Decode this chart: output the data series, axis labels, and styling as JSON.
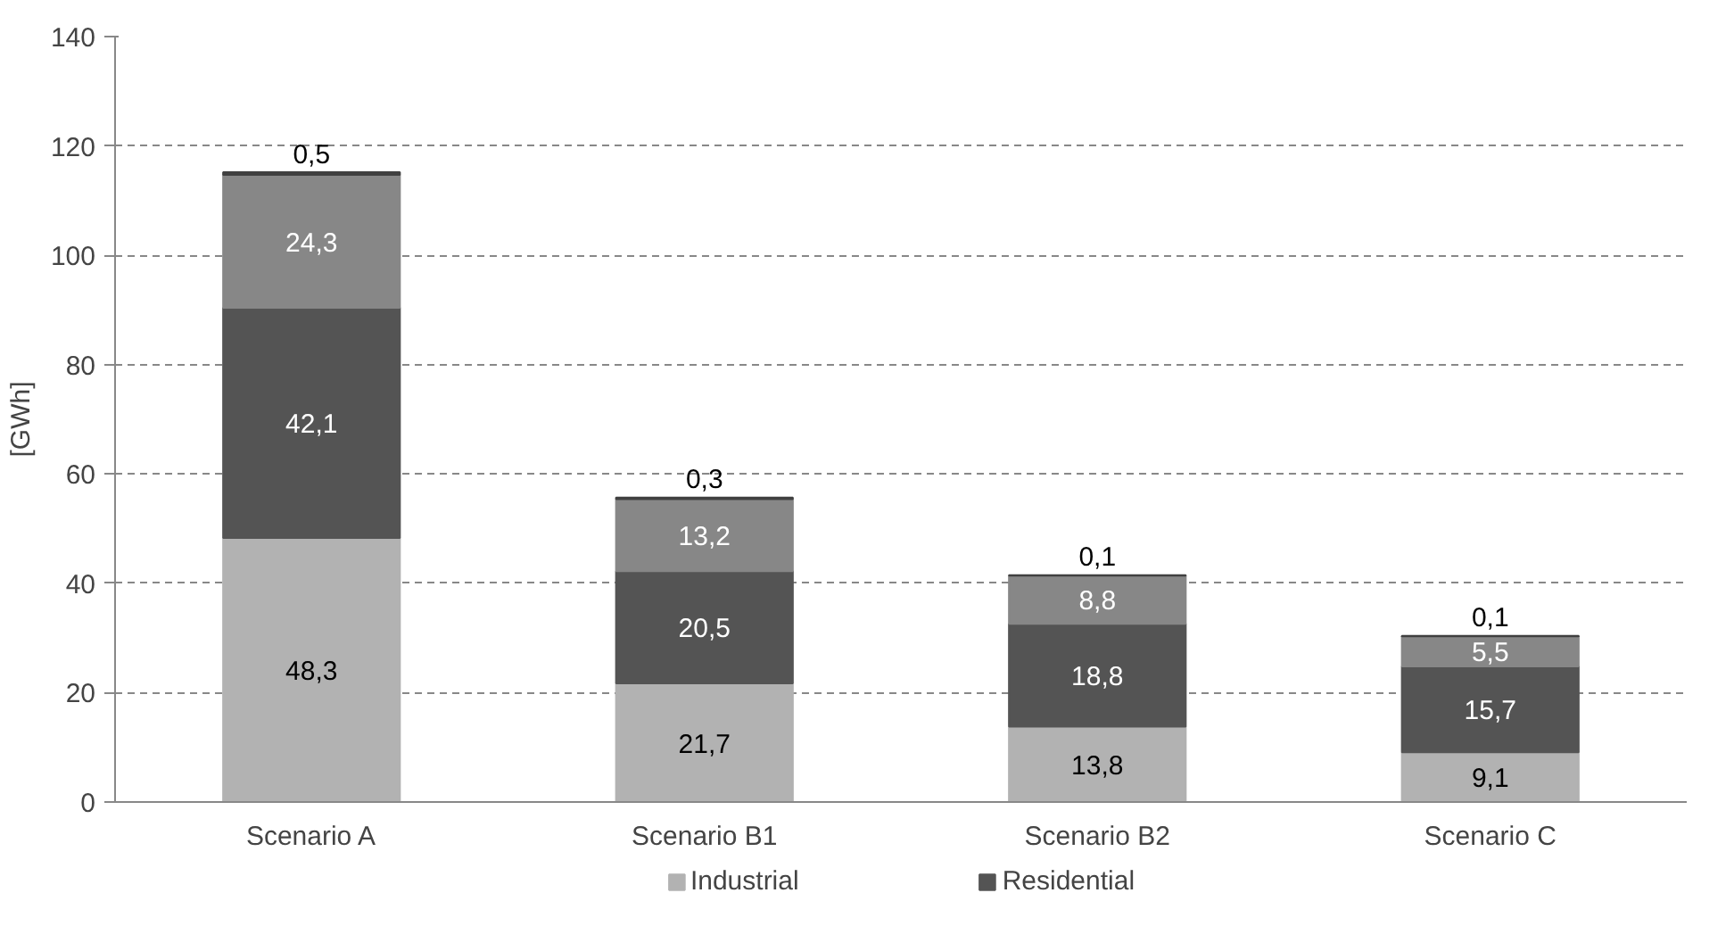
{
  "chart_data": {
    "type": "bar",
    "stacked": true,
    "ylabel": "[GWh]",
    "categories": [
      "Scenario A",
      "Scenario B1",
      "Scenario B2",
      "Scenario C"
    ],
    "series": [
      {
        "name": "Industrial",
        "color": "#b2b2b2",
        "values": [
          48.3,
          21.7,
          13.8,
          9.1
        ],
        "value_labels": [
          "48,3",
          "21,7",
          "13,8",
          "9,1"
        ]
      },
      {
        "name": "Residential",
        "color": "#545454",
        "values": [
          42.1,
          20.5,
          18.8,
          15.7
        ],
        "value_labels": [
          "42,1",
          "20,5",
          "18,8",
          "15,7"
        ]
      },
      {
        "color": "#878787",
        "values": [
          24.3,
          13.2,
          8.8,
          5.5
        ],
        "value_labels": [
          "24,3",
          "13,2",
          "8,8",
          "5,5"
        ]
      },
      {
        "color": "#404040",
        "values": [
          0.5,
          0.3,
          0.1,
          0.1
        ],
        "value_labels": [
          "0,5",
          "0,3",
          "0,1",
          "0,1"
        ]
      }
    ],
    "ylim": [
      0,
      140
    ],
    "yticks": [
      0,
      20,
      40,
      60,
      80,
      100,
      120,
      140
    ],
    "grid": "y",
    "legend": "bottom"
  }
}
